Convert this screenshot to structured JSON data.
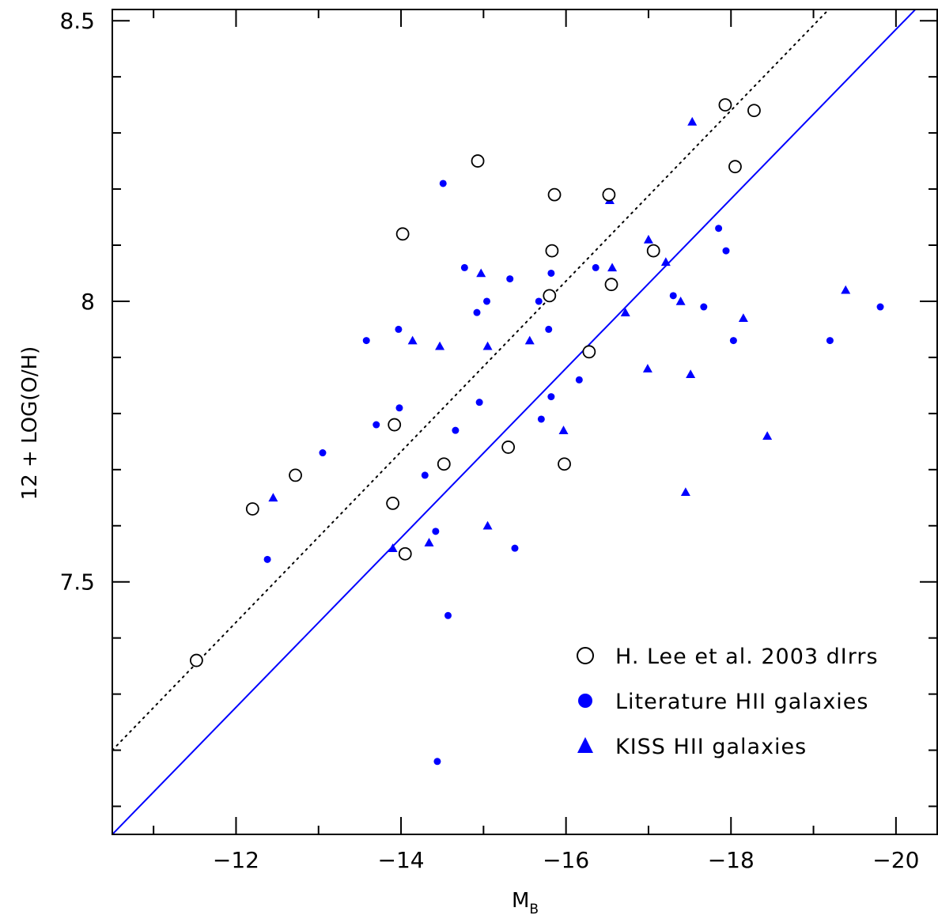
{
  "chart_data": {
    "type": "scatter",
    "xlabel": "M",
    "xlabel_sub": "B",
    "ylabel": "12 + LOG(O/H)",
    "xlim": [
      -10.5,
      -20.5
    ],
    "ylim": [
      7.05,
      8.52
    ],
    "x_ticks": [
      -12,
      -14,
      -16,
      -18,
      -20
    ],
    "x_tick_labels": [
      "−12",
      "−14",
      "−16",
      "−18",
      "−20"
    ],
    "y_ticks": [
      7.5,
      8.0,
      8.5
    ],
    "y_tick_labels": [
      "7.5",
      "8",
      "8.5"
    ],
    "grid": false,
    "legend_position": "lower-right",
    "colors": {
      "lee": "#000000",
      "literature": "#0000ff",
      "kiss": "#0000ff",
      "fit": "#0000ff",
      "dotted": "#000000"
    },
    "series": [
      {
        "name": "H. Lee et al. 2003 dIrrs",
        "marker": "open-circle",
        "points": [
          [
            -11.52,
            7.36
          ],
          [
            -12.2,
            7.63
          ],
          [
            -12.72,
            7.69
          ],
          [
            -13.9,
            7.64
          ],
          [
            -13.92,
            7.78
          ],
          [
            -14.02,
            8.12
          ],
          [
            -14.05,
            7.55
          ],
          [
            -14.52,
            7.71
          ],
          [
            -14.93,
            8.25
          ],
          [
            -15.3,
            7.74
          ],
          [
            -15.8,
            8.01
          ],
          [
            -15.83,
            8.09
          ],
          [
            -15.86,
            8.19
          ],
          [
            -15.98,
            7.71
          ],
          [
            -16.28,
            7.91
          ],
          [
            -16.52,
            8.19
          ],
          [
            -16.55,
            8.03
          ],
          [
            -17.06,
            8.09
          ],
          [
            -17.93,
            8.35
          ],
          [
            -18.05,
            8.24
          ],
          [
            -18.28,
            8.34
          ]
        ]
      },
      {
        "name": "Literature HII galaxies",
        "marker": "filled-circle",
        "points": [
          [
            -12.38,
            7.54
          ],
          [
            -13.05,
            7.73
          ],
          [
            -13.58,
            7.93
          ],
          [
            -13.7,
            7.78
          ],
          [
            -13.97,
            7.95
          ],
          [
            -13.98,
            7.81
          ],
          [
            -14.29,
            7.69
          ],
          [
            -14.42,
            7.59
          ],
          [
            -14.44,
            7.18
          ],
          [
            -14.51,
            8.21
          ],
          [
            -14.57,
            7.44
          ],
          [
            -14.66,
            7.77
          ],
          [
            -14.77,
            8.06
          ],
          [
            -14.92,
            7.98
          ],
          [
            -14.95,
            7.82
          ],
          [
            -15.04,
            8.0
          ],
          [
            -15.32,
            8.04
          ],
          [
            -15.38,
            7.56
          ],
          [
            -15.67,
            8.0
          ],
          [
            -15.7,
            7.79
          ],
          [
            -15.79,
            7.95
          ],
          [
            -15.82,
            8.05
          ],
          [
            -15.82,
            7.83
          ],
          [
            -16.16,
            7.86
          ],
          [
            -16.36,
            8.06
          ],
          [
            -17.3,
            8.01
          ],
          [
            -17.67,
            7.99
          ],
          [
            -17.85,
            8.13
          ],
          [
            -17.94,
            8.09
          ],
          [
            -18.03,
            7.93
          ],
          [
            -19.2,
            7.93
          ],
          [
            -19.81,
            7.99
          ]
        ]
      },
      {
        "name": "KISS HII galaxies",
        "marker": "filled-triangle",
        "points": [
          [
            -12.45,
            7.65
          ],
          [
            -13.9,
            7.56
          ],
          [
            -14.14,
            7.93
          ],
          [
            -14.34,
            7.57
          ],
          [
            -14.47,
            7.92
          ],
          [
            -14.97,
            8.05
          ],
          [
            -15.05,
            7.92
          ],
          [
            -15.05,
            7.6
          ],
          [
            -15.56,
            7.93
          ],
          [
            -15.97,
            7.77
          ],
          [
            -16.53,
            8.18
          ],
          [
            -16.56,
            8.06
          ],
          [
            -16.72,
            7.98
          ],
          [
            -16.99,
            7.88
          ],
          [
            -17.0,
            8.11
          ],
          [
            -17.21,
            8.07
          ],
          [
            -17.39,
            8.0
          ],
          [
            -17.45,
            7.66
          ],
          [
            -17.51,
            7.87
          ],
          [
            -17.53,
            8.32
          ],
          [
            -18.15,
            7.97
          ],
          [
            -18.44,
            7.76
          ],
          [
            -19.39,
            8.02
          ]
        ]
      }
    ],
    "lines": [
      {
        "style": "solid",
        "color": "#0000ff",
        "x": [
          -10.5,
          -20.5
        ],
        "y": [
          7.05,
          8.56
        ]
      },
      {
        "style": "dotted",
        "color": "#000000",
        "x": [
          -10.5,
          -20.5
        ],
        "y": [
          7.2,
          8.72
        ]
      }
    ]
  }
}
